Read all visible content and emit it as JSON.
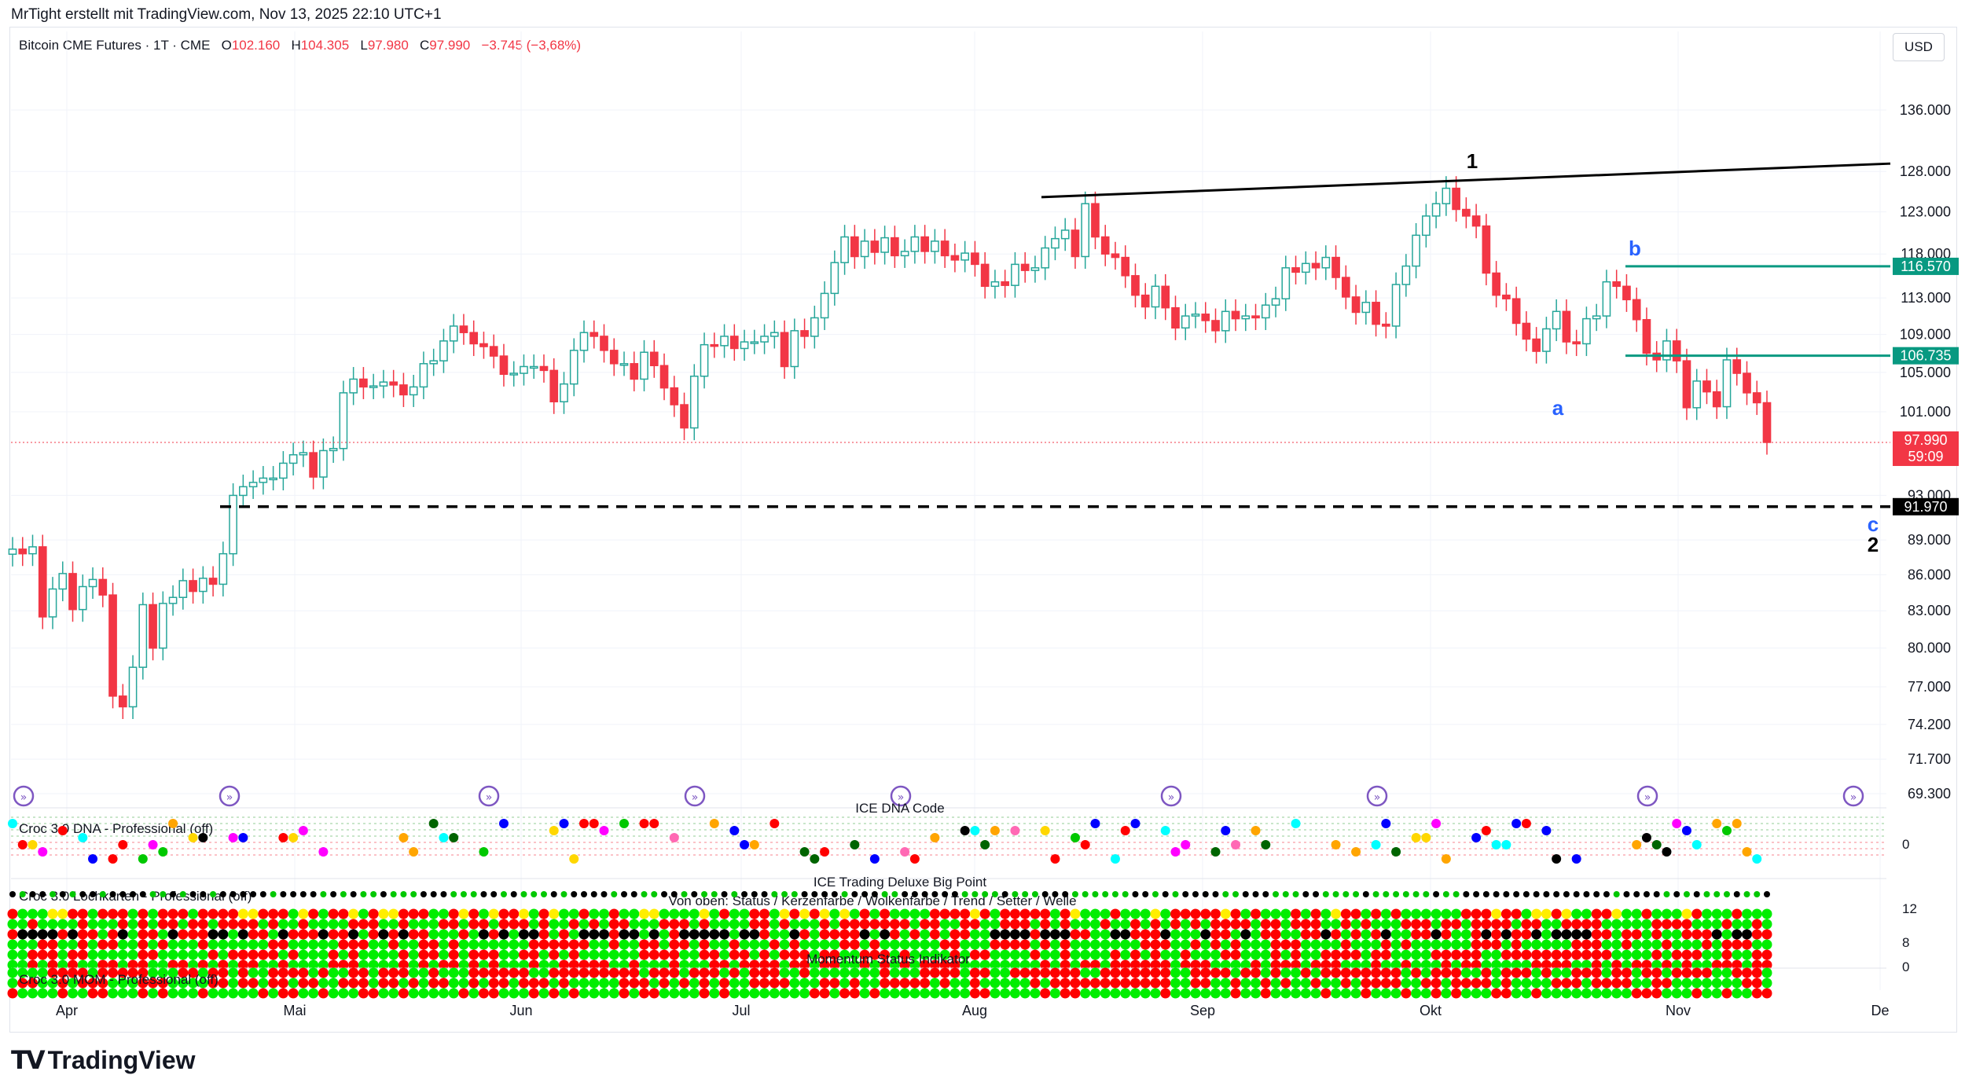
{
  "header": {
    "credit": "MrTight erstellt mit TradingView.com, Nov 13, 2025 22:10 UTC+1",
    "symbol": "Bitcoin CME Futures · 1T · CME",
    "open_label": "O",
    "open": "102.160",
    "high_label": "H",
    "high": "104.305",
    "low_label": "L",
    "low": "97.980",
    "close_label": "C",
    "close": "97.990",
    "change": "−3.745 (−3,68%)",
    "currency": "USD"
  },
  "colors": {
    "up": "#26a69a",
    "down": "#f23645",
    "level_line": "#089981",
    "wave_blue": "#2962ff",
    "dashed_support": "#000000"
  },
  "chart_data": {
    "type": "candlestick",
    "x_months": [
      "Apr",
      "Mai",
      "Jun",
      "Jul",
      "Aug",
      "Sep",
      "Okt",
      "Nov",
      "De"
    ],
    "y_ticks": [
      136000,
      128000,
      123000,
      118000,
      113000,
      109000,
      105000,
      101000,
      93000,
      89000,
      86000,
      83000,
      80000,
      77000,
      74200,
      71700,
      69300
    ],
    "y_tick_labels": [
      "136.000",
      "128.000",
      "123.000",
      "118.000",
      "113.000",
      "109.000",
      "105.000",
      "101.000",
      "93.000",
      "89.000",
      "86.000",
      "83.000",
      "80.000",
      "77.000",
      "74.200",
      "71.700",
      "69.300"
    ],
    "ylim": [
      68500,
      142000
    ],
    "scale": "log",
    "closes": [
      88200,
      87800,
      88400,
      82500,
      84800,
      86100,
      83100,
      85000,
      85600,
      84300,
      76300,
      75500,
      78500,
      83500,
      80000,
      83600,
      84100,
      85500,
      84600,
      85700,
      85200,
      87800,
      93000,
      93800,
      94200,
      94600,
      94600,
      96000,
      96800,
      97000,
      94700,
      97200,
      97400,
      102900,
      104300,
      103500,
      103600,
      104000,
      103700,
      102700,
      103500,
      105900,
      106200,
      108300,
      109900,
      109200,
      108000,
      107700,
      106700,
      104800,
      104900,
      105600,
      105600,
      105200,
      102000,
      103800,
      107300,
      109200,
      108800,
      107300,
      105900,
      105900,
      104300,
      107100,
      105700,
      103400,
      101700,
      99400,
      104600,
      107900,
      107800,
      108800,
      107500,
      108200,
      108200,
      108800,
      109200,
      105600,
      109400,
      108800,
      110800,
      113500,
      117000,
      120000,
      117700,
      119500,
      118200,
      119900,
      117800,
      118300,
      120000,
      118300,
      119500,
      117800,
      117300,
      118100,
      116800,
      114300,
      114800,
      114400,
      116800,
      116100,
      116400,
      118700,
      119800,
      120800,
      117700,
      124000,
      120000,
      118000,
      117600,
      115500,
      113300,
      112000,
      114300,
      111900,
      109700,
      111000,
      111200,
      110500,
      109400,
      111500,
      110700,
      111000,
      110800,
      112200,
      112900,
      116400,
      115900,
      116900,
      116400,
      117600,
      115300,
      113100,
      111400,
      112500,
      110100,
      109900,
      114500,
      116600,
      120200,
      122500,
      124000,
      125900,
      123300,
      122500,
      121300,
      115800,
      113300,
      112900,
      110200,
      108500,
      107200,
      109600,
      111500,
      108200,
      108000,
      110700,
      111000,
      114800,
      114300,
      112800,
      110600,
      107000,
      106300,
      108300,
      106200,
      101400,
      104100,
      103000,
      101500,
      106300,
      104900,
      102900,
      101900,
      97990
    ],
    "support_level": {
      "label": "91.970",
      "value": 91970
    },
    "resistance_trendline": {
      "from": 124800,
      "to": 129000
    },
    "level_lines": [
      {
        "label": "116.570",
        "value": 116570
      },
      {
        "label": "106.735",
        "value": 106735
      }
    ],
    "current_price": {
      "label": "97.990",
      "countdown": "59:09",
      "value": 97990
    },
    "wave_labels": [
      {
        "text": "1",
        "color": "black"
      },
      {
        "text": "a",
        "color": "blue"
      },
      {
        "text": "b",
        "color": "blue"
      },
      {
        "text": "c",
        "color": "blue"
      },
      {
        "text": "2",
        "color": "black"
      }
    ]
  },
  "indicators": {
    "dna_label": "Croc 3.0 DNA - Professional (off)",
    "dna_header": "ICE DNA Code",
    "dna_axis": "0",
    "bigpoint_label": "ICE Trading Deluxe Big Point",
    "lochblatt_label": "Croc 3.0 Lochkarten - Professional (off)",
    "lochblatt_caption": "Von oben: Status / Kerzenfarbe / Wolkenfarbe / Trend / Setter / Welle",
    "status_axis": [
      "12",
      "8",
      "0"
    ],
    "mom_label": "Croc 3.0 MOM - Professional (off)",
    "mom_caption": "Momentum Status Indikator"
  },
  "footer": {
    "brand": "TradingView"
  }
}
